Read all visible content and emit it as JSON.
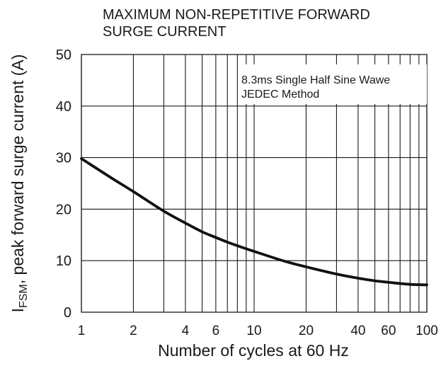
{
  "chart_data": {
    "type": "line",
    "title_lines": [
      "MAXIMUM NON-REPETITIVE FORWARD",
      "SURGE CURRENT"
    ],
    "ylabel_main": "I",
    "ylabel_sub": "FSM",
    "ylabel_rest": ", peak forward surge current (A)",
    "xlabel": "Number of cycles at 60 Hz",
    "x_scale": "log",
    "xlim": [
      1,
      100
    ],
    "ylim": [
      0,
      50
    ],
    "x_gridlines": [
      1,
      2,
      3,
      4,
      5,
      6,
      7,
      8,
      9,
      10,
      20,
      30,
      40,
      50,
      60,
      70,
      80,
      90,
      100
    ],
    "x_ticks": [
      1,
      2,
      4,
      6,
      10,
      20,
      40,
      60,
      100
    ],
    "x_tick_labels": [
      "1",
      "2",
      "4",
      "6",
      "10",
      "20",
      "40",
      "60",
      "100"
    ],
    "y_ticks": [
      0,
      10,
      20,
      30,
      40,
      50
    ],
    "y_tick_labels": [
      "0",
      "10",
      "20",
      "30",
      "40",
      "50"
    ],
    "grid": true,
    "legend_position": "top-right",
    "annotation_lines": [
      "8.3ms Single Half Sine Wawe",
      "JEDEC Method"
    ],
    "series": [
      {
        "x": [
          1,
          1.5,
          2,
          3,
          4,
          5,
          6,
          7,
          8,
          10,
          15,
          20,
          30,
          40,
          50,
          60,
          80,
          100
        ],
        "values": [
          29.8,
          26.0,
          23.4,
          19.6,
          17.3,
          15.6,
          14.5,
          13.6,
          12.9,
          11.8,
          9.9,
          8.8,
          7.4,
          6.6,
          6.1,
          5.8,
          5.4,
          5.3
        ]
      }
    ],
    "colors": {
      "curve": "#111111",
      "grid": "#1a1a1a",
      "text": "#1a1a1a"
    }
  }
}
